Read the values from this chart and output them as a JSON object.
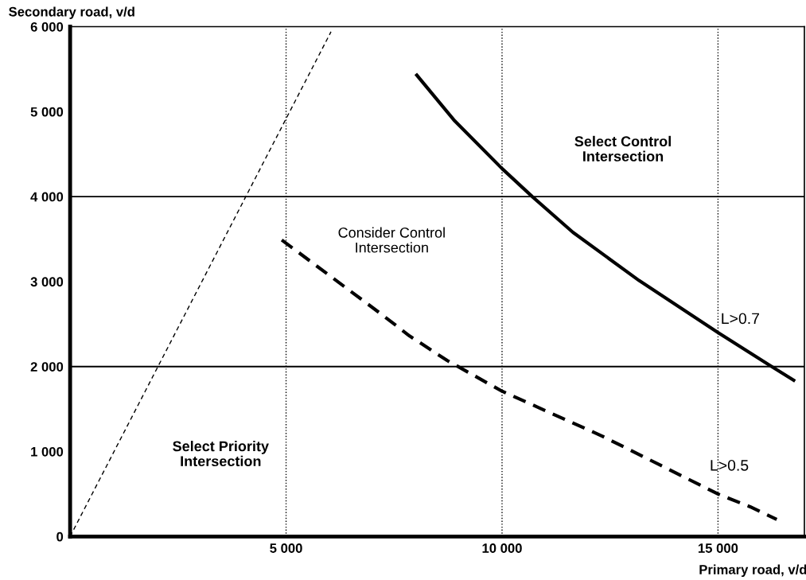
{
  "chart_data": {
    "type": "line",
    "xlabel": "Primary road, v/d",
    "ylabel": "Secondary road, v/d",
    "xlim": [
      0,
      17000
    ],
    "ylim": [
      0,
      6000
    ],
    "xticks": [
      {
        "value": 5000,
        "label": "5 000"
      },
      {
        "value": 10000,
        "label": "10 000"
      },
      {
        "value": 15000,
        "label": "15 000"
      }
    ],
    "yticks": [
      0,
      {
        "value": 1000,
        "label": "1 000"
      },
      {
        "value": 2000,
        "label": "2 000"
      },
      {
        "value": 3000,
        "label": "3 000"
      },
      {
        "value": 4000,
        "label": "4 000"
      },
      {
        "value": 5000,
        "label": "5 000"
      },
      {
        "value": 6000,
        "label": "6 000"
      }
    ],
    "grid": "x",
    "ref_lines": [
      {
        "axis": "y",
        "value": 2000,
        "color": "#000000",
        "line_style": "solid"
      },
      {
        "axis": "y",
        "value": 4000,
        "color": "#000000",
        "line_style": "solid"
      }
    ],
    "series": [
      {
        "color": "#000000",
        "line_style": "dashed",
        "x": [
          0,
          6040
        ],
        "values": [
          0,
          5940
        ]
      },
      {
        "color": "#000000",
        "line_style": "dashed",
        "x": [
          4900,
          7197,
          7860,
          8735,
          10000,
          12325,
          15000,
          15744,
          16360
        ],
        "values": [
          3490,
          2620,
          2360,
          2070,
          1710,
          1180,
          500,
          350,
          200
        ]
      },
      {
        "color": "#000000",
        "line_style": "solid",
        "x": [
          8026,
          8906,
          10000,
          10700,
          11641,
          13179,
          15000,
          16214,
          16752
        ],
        "values": [
          5430,
          4890,
          4330,
          4000,
          3580,
          3010,
          2400,
          2010,
          1840
        ]
      }
    ],
    "annotations": [
      "L>0.7",
      "L>0.5",
      "Select Priority\nIntersection",
      "Consider Control\nIntersection",
      "Select Control\nIntersection"
    ]
  }
}
